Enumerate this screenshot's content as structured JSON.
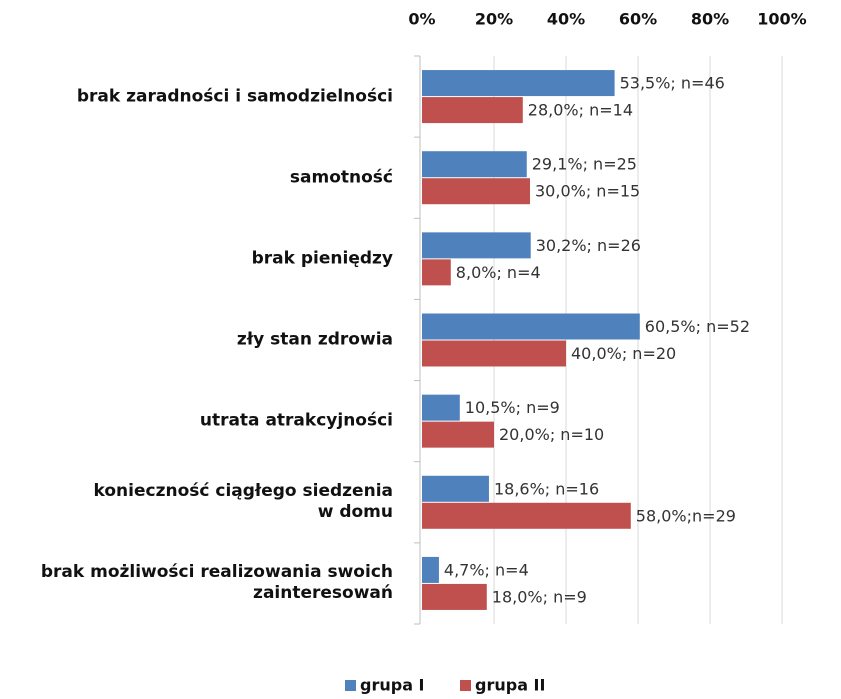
{
  "chart_data": {
    "type": "bar",
    "orientation": "horizontal",
    "categories": [
      "brak zaradności i samodzielności",
      "samotność",
      "brak pieniędzy",
      "zły stan zdrowia",
      "utrata atrakcyjności",
      "konieczność ciągłego siedzenia\nw domu",
      "brak możliwości realizowania swoich\nzainteresowań"
    ],
    "series": [
      {
        "name": "grupa I",
        "color": "#4f81bd",
        "values": [
          53.5,
          29.1,
          30.2,
          60.5,
          10.5,
          18.6,
          4.7
        ],
        "value_labels": [
          "53,5%; n=46",
          "29,1%; n=25",
          "30,2%; n=26",
          "60,5%; n=52",
          "10,5%; n=9",
          "18,6%; n=16",
          "4,7%; n=4"
        ]
      },
      {
        "name": "grupa II",
        "color": "#c0504d",
        "values": [
          28.0,
          30.0,
          8.0,
          40.0,
          20.0,
          58.0,
          18.0
        ],
        "value_labels": [
          "28,0%; n=14",
          "30,0%; n=15",
          "8,0%; n=4",
          "40,0%; n=20",
          "20,0%; n=10",
          "58,0%;n=29",
          "18,0%; n=9"
        ]
      }
    ],
    "xlim": [
      0,
      100
    ],
    "xticks": [
      {
        "value": 0,
        "label": "0%"
      },
      {
        "value": 20,
        "label": "20%"
      },
      {
        "value": 40,
        "label": "40%"
      },
      {
        "value": 60,
        "label": "60%"
      },
      {
        "value": 80,
        "label": "80%"
      },
      {
        "value": 100,
        "label": "100%"
      }
    ],
    "grid": true,
    "legend": "bottom"
  }
}
